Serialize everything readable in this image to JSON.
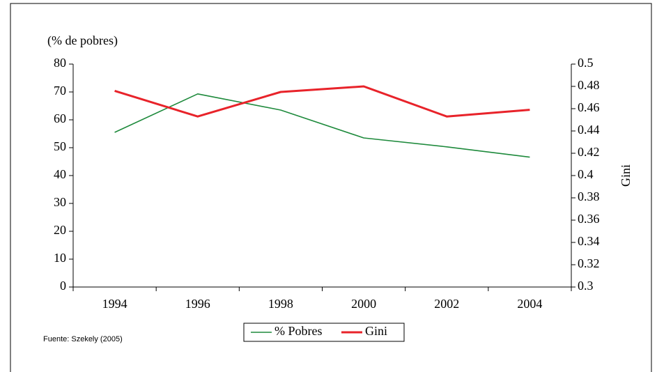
{
  "chart_data": {
    "type": "line",
    "y_label": "(% de pobres)",
    "y2_label": "Gini",
    "source": "Fuente: Szekely (2005)",
    "categories": [
      "1994",
      "1996",
      "1998",
      "2000",
      "2002",
      "2004"
    ],
    "series": [
      {
        "name": "% Pobres",
        "color": "#1e8a3c",
        "values": [
          55.5,
          69.3,
          63.5,
          53.5,
          50.3,
          46.6
        ]
      },
      {
        "name": "Gini",
        "color": "#e8232a",
        "axis": "y2",
        "values": [
          0.476,
          0.453,
          0.475,
          0.48,
          0.453,
          0.459
        ]
      }
    ],
    "ylim": [
      0,
      80
    ],
    "yticks": [
      0,
      10,
      20,
      30,
      40,
      50,
      60,
      70,
      80
    ],
    "y2lim": [
      0.3,
      0.5
    ],
    "y2ticks": [
      0.3,
      0.32,
      0.34,
      0.36,
      0.38,
      0.4,
      0.42,
      0.44,
      0.46,
      0.48,
      0.5
    ],
    "legend": "bottom"
  }
}
